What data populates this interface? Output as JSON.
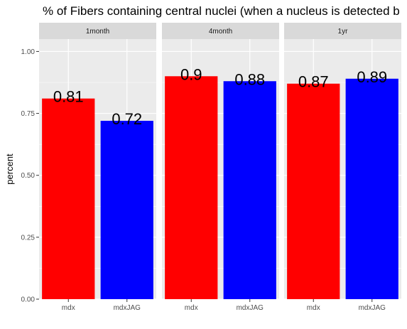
{
  "chart_data": {
    "type": "bar",
    "title": "% of Fibers containing central nuclei (when a nucleus is detected b",
    "xlabel": "",
    "ylabel": "percent",
    "ylim": [
      0,
      1.05
    ],
    "yticks": [
      0,
      0.25,
      0.5,
      0.75,
      1.0
    ],
    "ytick_labels": [
      "0.00",
      "0.25",
      "0.50",
      "0.75",
      "1.00"
    ],
    "grid": true,
    "categories": [
      "mdx",
      "mdxJAG"
    ],
    "category_colors": [
      "#FF0000",
      "#0000FF"
    ],
    "panels": [
      {
        "label": "1month",
        "values": [
          0.81,
          0.72
        ],
        "data_labels": [
          "0.81",
          "0.72"
        ]
      },
      {
        "label": "4month",
        "values": [
          0.9,
          0.88
        ],
        "data_labels": [
          "0.9",
          "0.88"
        ]
      },
      {
        "label": "1yr",
        "values": [
          0.87,
          0.89
        ],
        "data_labels": [
          "0.87",
          "0.89"
        ]
      }
    ]
  }
}
